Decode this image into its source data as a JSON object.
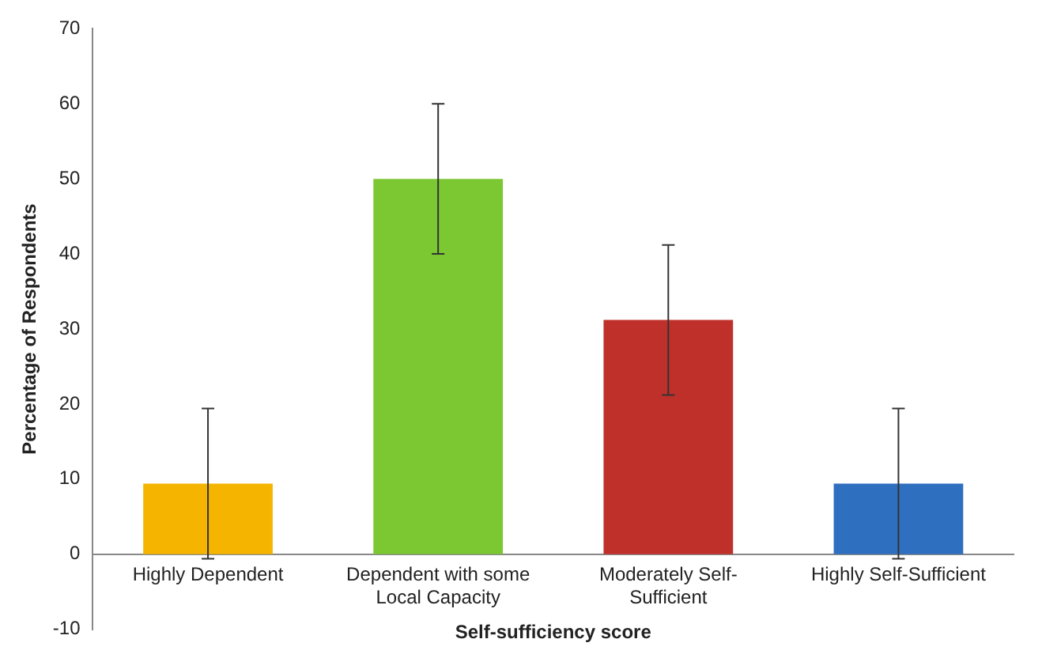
{
  "chart_data": {
    "type": "bar",
    "xlabel": "Self-sufficiency score",
    "ylabel": "Percentage of Respondents",
    "categories": [
      "Highly Dependent",
      "Dependent with some Local Capacity",
      "Moderately Self-Sufficient",
      "Highly Self-Sufficient"
    ],
    "values": [
      9.4,
      50,
      31.2,
      9.4
    ],
    "colors": [
      "#f5b400",
      "#7cc832",
      "#c0302b",
      "#2f6fc0"
    ],
    "errors": [
      10,
      10,
      10,
      10
    ],
    "ylim": [
      -10,
      70
    ],
    "yticks": [
      -10,
      0,
      10,
      20,
      30,
      40,
      50,
      60,
      70
    ],
    "grid": false,
    "legend": false
  }
}
